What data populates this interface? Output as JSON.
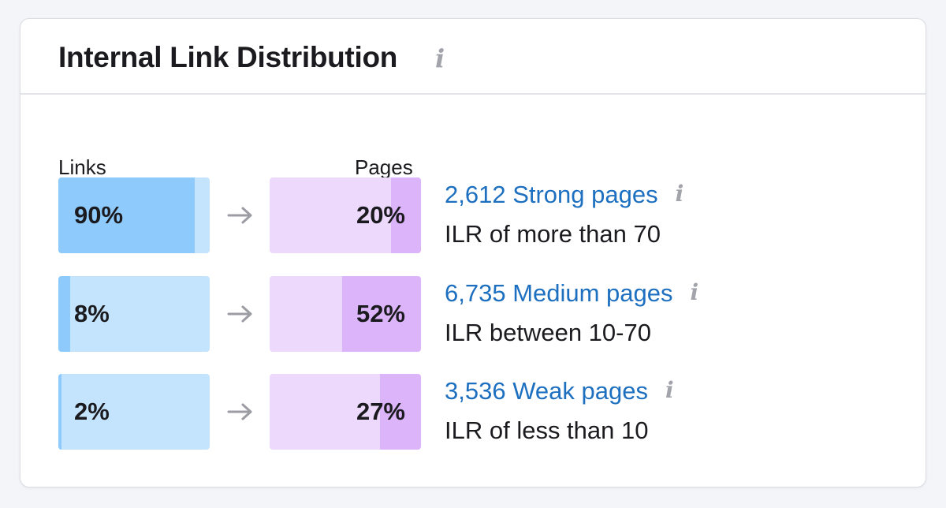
{
  "widget": {
    "title": "Internal Link Distribution",
    "info_icon": "i",
    "links_label": "Links",
    "pages_label": "Pages"
  },
  "rows": [
    {
      "links_percent": "90%",
      "links_fraction": 0.9,
      "pages_percent": "20%",
      "pages_fraction": 0.2,
      "title": "2,612 Strong pages",
      "subtitle": "ILR of more than 70"
    },
    {
      "links_percent": "8%",
      "links_fraction": 0.08,
      "pages_percent": "52%",
      "pages_fraction": 0.52,
      "title": "6,735 Medium pages",
      "subtitle": "ILR between 10-70"
    },
    {
      "links_percent": "2%",
      "links_fraction": 0.02,
      "pages_percent": "27%",
      "pages_fraction": 0.27,
      "title": "3,536 Weak pages",
      "subtitle": "ILR of less than 10"
    }
  ],
  "colors": {
    "links_bar_bg": "#c4e3fc",
    "links_bar_fill": "#8ecbfc",
    "pages_bar_bg": "#ecd9fc",
    "pages_bar_fill": "#dcb4fa",
    "link_text": "#1d6fc0",
    "info_icon": "#a3a4ab"
  }
}
